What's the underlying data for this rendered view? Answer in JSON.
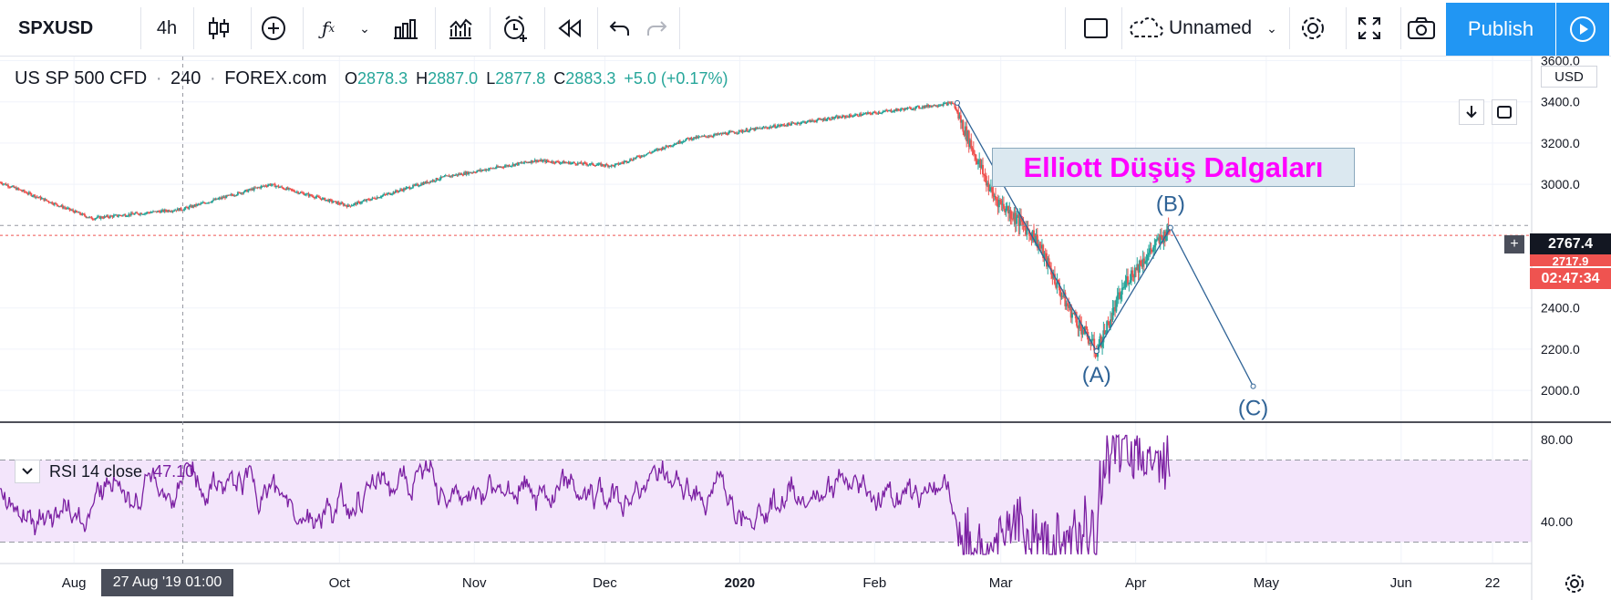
{
  "toolbar": {
    "symbol": "SPXUSD",
    "interval": "4h",
    "layout_name": "Unnamed",
    "publish_label": "Publish"
  },
  "legend": {
    "name": "US SP 500 CFD",
    "timeframe": "240",
    "exchange": "FOREX.com",
    "open": "2878.3",
    "high": "2887.0",
    "low": "2877.8",
    "close": "2883.3",
    "change": "+5.0 (+0.17%)",
    "o": "O",
    "h": "H",
    "l": "L",
    "c": "C"
  },
  "currency": "USD",
  "annotation": "Elliott Düşüş Dalgaları",
  "waves": {
    "a": "(A)",
    "b": "(B)",
    "c": "(C)"
  },
  "price_labels": {
    "crosshair": "2767.4",
    "last": "2717.9",
    "countdown": "02:47:34"
  },
  "rsi": {
    "title": "RSI 14 close",
    "value": "47.10",
    "ticks": [
      "80.00",
      "40.00"
    ]
  },
  "crosshair_date": "27 Aug '19   01:00",
  "colors": {
    "up": "#26a69a",
    "down": "#ef5350",
    "rsi": "#7b1fa2",
    "accent": "#2196f3",
    "wave": "#2f6396",
    "title": "#ff00ff"
  },
  "chart_data": [
    {
      "type": "candlestick",
      "title": "US SP 500 CFD",
      "y_ticks": [
        "3600.0",
        "3400.0",
        "3200.0",
        "3000.0",
        "2400.0",
        "2200.0",
        "2000.0"
      ],
      "ylim": [
        1850,
        3620
      ],
      "x_ticks": [
        "Aug",
        "Oct",
        "Nov",
        "Dec",
        "2020",
        "Feb",
        "Mar",
        "Apr",
        "May",
        "Jun",
        "22"
      ],
      "series": [
        {
          "x": [
            "2019-07-15",
            "2019-08-05",
            "2019-08-26",
            "2019-09-15",
            "2019-10-03",
            "2019-10-25",
            "2019-11-15",
            "2019-12-03",
            "2019-12-20",
            "2020-01-20",
            "2020-02-19",
            "2020-02-28",
            "2020-03-09",
            "2020-03-16",
            "2020-03-23",
            "2020-03-30",
            "2020-04-09"
          ],
          "y": [
            3010,
            2835,
            2880,
            3000,
            2895,
            3035,
            3115,
            3090,
            3220,
            3315,
            3395,
            2950,
            2740,
            2420,
            2190,
            2540,
            2790
          ]
        }
      ],
      "annotations": [
        {
          "label": "(A)",
          "x": "2020-03-23",
          "y": 2190
        },
        {
          "label": "(B)",
          "x": "2020-04-09",
          "y": 2790
        },
        {
          "label": "(C)",
          "x": "2020-04-28",
          "y": 2020
        }
      ],
      "wave_start": {
        "x": "2020-02-20",
        "y": 3395
      }
    },
    {
      "type": "line",
      "title": "RSI 14 close",
      "y_ticks": [
        "80.00",
        "40.00"
      ],
      "ylim": [
        20,
        88
      ],
      "bands": [
        30,
        70
      ]
    }
  ]
}
